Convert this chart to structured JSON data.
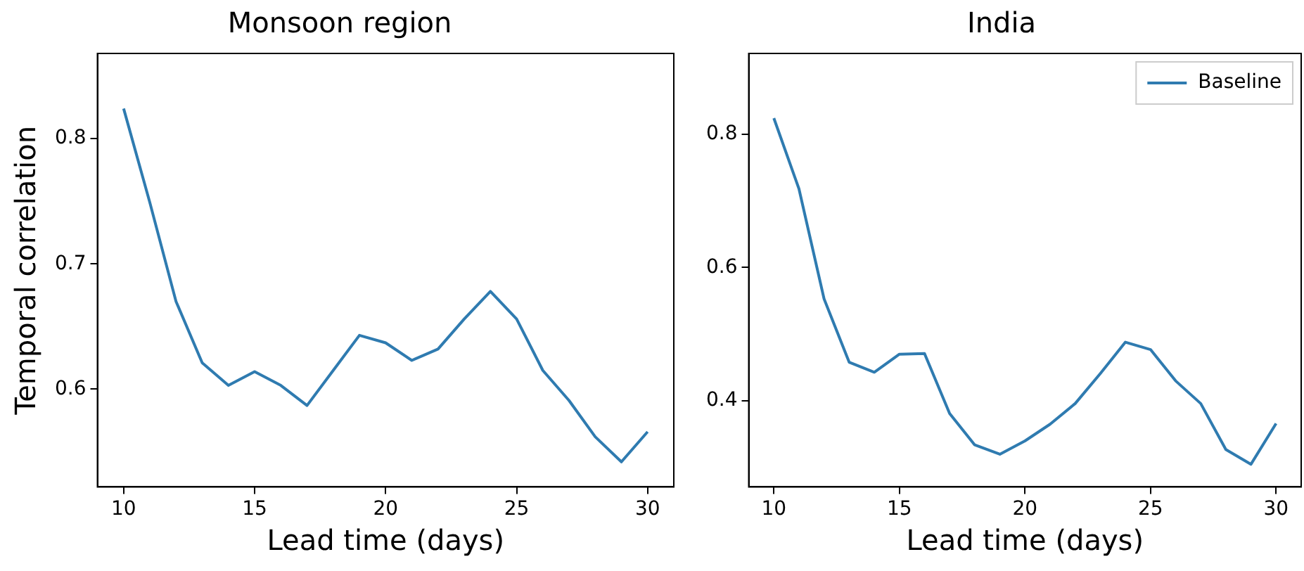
{
  "chart_data": [
    {
      "type": "line",
      "title": "Monsoon region",
      "xlabel": "Lead time (days)",
      "ylabel": "Temporal correlation",
      "x": [
        10,
        11,
        12,
        13,
        14,
        15,
        16,
        17,
        18,
        19,
        20,
        21,
        22,
        23,
        24,
        25,
        26,
        27,
        28,
        29,
        30
      ],
      "series": [
        {
          "color": "#2f7bb0",
          "values": [
            0.824,
            0.749,
            0.67,
            0.621,
            0.603,
            0.614,
            0.603,
            0.587,
            0.615,
            0.643,
            0.637,
            0.623,
            0.632,
            0.656,
            0.678,
            0.656,
            0.615,
            0.591,
            0.562,
            0.542,
            0.566
          ]
        }
      ],
      "xlim": [
        9,
        31
      ],
      "ylim": [
        0.522,
        0.868
      ],
      "xticks": [
        10,
        15,
        20,
        25,
        30
      ],
      "yticks": [
        0.6,
        0.7,
        0.8
      ],
      "grid": false,
      "legend": false
    },
    {
      "type": "line",
      "title": "India",
      "xlabel": "Lead time (days)",
      "x": [
        10,
        11,
        12,
        13,
        14,
        15,
        16,
        17,
        18,
        19,
        20,
        21,
        22,
        23,
        24,
        25,
        26,
        27,
        28,
        29,
        30
      ],
      "series": [
        {
          "name": "Baseline",
          "color": "#2f7bb0",
          "values": [
            0.824,
            0.718,
            0.553,
            0.458,
            0.443,
            0.47,
            0.471,
            0.381,
            0.334,
            0.32,
            0.34,
            0.365,
            0.396,
            0.441,
            0.488,
            0.477,
            0.43,
            0.396,
            0.327,
            0.305,
            0.366
          ]
        }
      ],
      "xlim": [
        9,
        31
      ],
      "ylim": [
        0.271,
        0.921
      ],
      "xticks": [
        10,
        15,
        20,
        25,
        30
      ],
      "yticks": [
        0.4,
        0.6,
        0.8
      ],
      "grid": false,
      "legend": "top right"
    }
  ]
}
